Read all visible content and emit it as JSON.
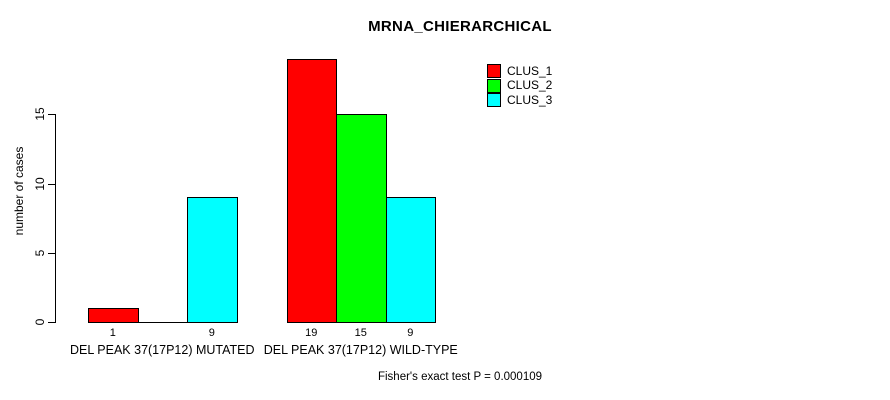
{
  "chart_data": {
    "type": "bar",
    "title": "MRNA_CHIERARCHICAL",
    "ylabel": "number of cases",
    "xlabel": "",
    "footnote": "Fisher's exact test P = 0.000109",
    "yticks": [
      0,
      5,
      10,
      15
    ],
    "ylim": [
      0,
      19
    ],
    "grid": false,
    "legend_position": "top-right",
    "categories": [
      "DEL PEAK 37(17P12) MUTATED",
      "DEL PEAK 37(17P12) WILD-TYPE"
    ],
    "series": [
      {
        "name": "CLUS_1",
        "color": "#ff0000",
        "values": [
          1,
          19
        ]
      },
      {
        "name": "CLUS_2",
        "color": "#00ff00",
        "values": [
          0,
          15
        ]
      },
      {
        "name": "CLUS_3",
        "color": "#00ffff",
        "values": [
          9,
          9
        ]
      }
    ],
    "value_labels": {
      "show": true,
      "hide_zero": true
    },
    "shown_value_labels": [
      [
        "1",
        "9"
      ],
      [
        "19",
        "15",
        "9"
      ]
    ]
  },
  "colors": {
    "background": "#ffffff",
    "axis": "#000000",
    "text": "#000000"
  }
}
